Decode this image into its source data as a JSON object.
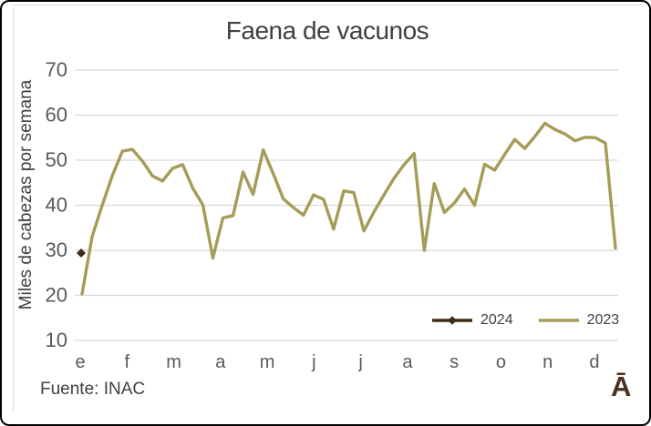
{
  "chart_data": {
    "type": "line",
    "title": "Faena de vacunos",
    "ylabel": "Miles de cabezas por semana",
    "xlabel": "",
    "x_labels": [
      "e",
      "f",
      "m",
      "a",
      "m",
      "j",
      "j",
      "a",
      "s",
      "o",
      "n",
      "d"
    ],
    "ylim": [
      10,
      70
    ],
    "yticks": [
      10,
      20,
      30,
      40,
      50,
      60,
      70
    ],
    "grid": "horizontal-only",
    "legend_position": "inside-bottom-right",
    "series": [
      {
        "name": "2024",
        "color": "#3E2A15",
        "marker": "diamond",
        "line_style": "solid",
        "values": [
          29.4
        ]
      },
      {
        "name": "2023",
        "color": "#A59C58",
        "marker": "none",
        "line_style": "solid",
        "values": [
          20.3,
          33,
          40,
          46.5,
          52,
          52.4,
          49.8,
          46.5,
          45.4,
          48.2,
          49,
          43.8,
          40.1,
          28.3,
          37.2,
          37.7,
          47.4,
          42.4,
          52.3,
          47,
          41.4,
          39.5,
          37.8,
          42.3,
          41.3,
          34.7,
          43.2,
          42.8,
          34.3,
          38.5,
          42.3,
          46,
          49,
          51.5,
          30,
          44.8,
          38.4,
          40.5,
          43.6,
          40,
          49.1,
          47.8,
          51.3,
          54.6,
          52.6,
          55.3,
          58.2,
          56.8,
          55.8,
          54.3,
          55.1,
          55,
          53.8,
          30.5
        ]
      }
    ]
  },
  "footer": {
    "source": "Fuente: INAC",
    "logo_glyph": "Ā"
  },
  "colors": {
    "title": "#404040",
    "axis_text": "#595959",
    "gridline": "#D9D9D9",
    "frame": "#000000",
    "chart_edge": "#DCDCDC",
    "logo": "#4A3120",
    "background": "#FFFFFF"
  }
}
